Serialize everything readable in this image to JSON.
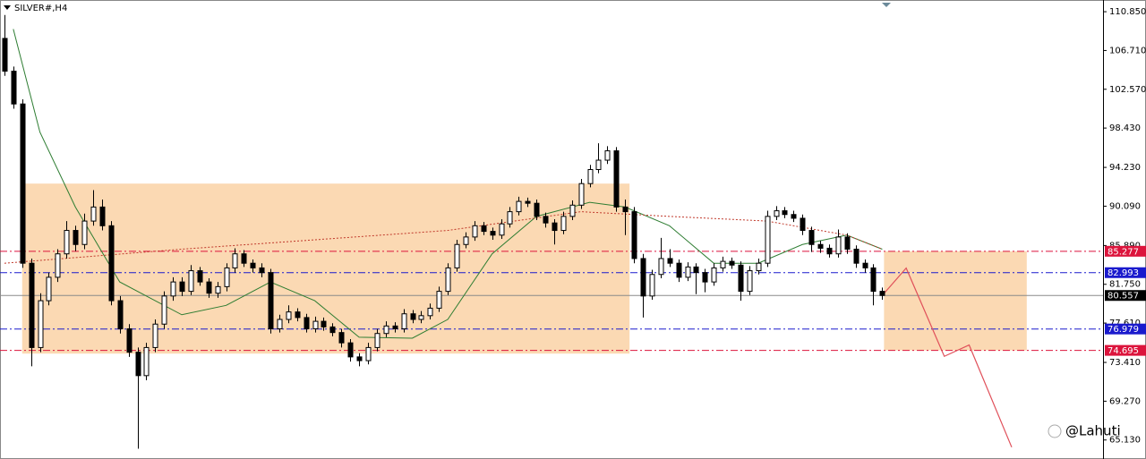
{
  "chart_data": {
    "type": "candlestick",
    "title": "SILVER#,H4",
    "watermark": "@Lahuti",
    "xlim": [
      -0.5,
      123.9
    ],
    "ylim": [
      63.1,
      112.1
    ],
    "yticks": [
      {
        "value": 110.85,
        "label": "110.850"
      },
      {
        "value": 106.71,
        "label": "106.710"
      },
      {
        "value": 102.57,
        "label": "102.570"
      },
      {
        "value": 98.43,
        "label": "98.430"
      },
      {
        "value": 94.23,
        "label": "94.230"
      },
      {
        "value": 90.09,
        "label": "90.090"
      },
      {
        "value": 85.89,
        "label": "85.890"
      },
      {
        "value": 81.75,
        "label": "81.750"
      },
      {
        "value": 77.61,
        "label": "77.610"
      },
      {
        "value": 73.41,
        "label": "73.410"
      },
      {
        "value": 69.27,
        "label": "69.270"
      },
      {
        "value": 65.13,
        "label": "65.130"
      }
    ],
    "up_color": "#ffffff",
    "down_color": "#000000",
    "candles": [
      [
        108,
        110.5,
        104,
        104.5
      ],
      [
        104.5,
        105,
        100.5,
        101
      ],
      [
        101,
        101.5,
        83.5,
        84
      ],
      [
        84,
        84.5,
        73,
        75
      ],
      [
        75,
        80.8,
        74.5,
        80
      ],
      [
        80,
        83,
        79.5,
        82.5
      ],
      [
        82.5,
        85.5,
        82,
        85
      ],
      [
        85,
        88.5,
        84.5,
        87.5
      ],
      [
        87.5,
        88,
        85.3,
        86
      ],
      [
        86,
        89.3,
        85.5,
        88.5
      ],
      [
        88.5,
        91.8,
        88,
        90
      ],
      [
        90,
        90.8,
        87.5,
        88
      ],
      [
        88,
        88.5,
        79.5,
        80
      ],
      [
        80,
        80.5,
        76.5,
        77
      ],
      [
        77,
        77.5,
        74,
        74.5
      ],
      [
        74.5,
        75,
        64.2,
        72
      ],
      [
        72,
        75.5,
        71.5,
        75
      ],
      [
        75,
        78,
        74.5,
        77.5
      ],
      [
        77.5,
        81,
        77,
        80.5
      ],
      [
        80.5,
        82.5,
        80,
        82
      ],
      [
        82,
        82.5,
        80.5,
        81
      ],
      [
        81,
        83.8,
        80.6,
        83.2
      ],
      [
        83.2,
        83.6,
        81.6,
        82
      ],
      [
        82,
        82.4,
        80.3,
        80.8
      ],
      [
        80.8,
        82,
        80.3,
        81.5
      ],
      [
        81.5,
        84,
        81,
        83.5
      ],
      [
        83.5,
        85.6,
        83,
        85
      ],
      [
        85,
        85.4,
        83.6,
        84
      ],
      [
        84,
        84.4,
        83,
        83.5
      ],
      [
        83.5,
        84,
        82.5,
        83
      ],
      [
        83,
        83.4,
        76.5,
        77
      ],
      [
        77,
        78.5,
        76.6,
        78
      ],
      [
        78,
        79.5,
        77.6,
        78.8
      ],
      [
        78.8,
        79.2,
        77.8,
        78.2
      ],
      [
        78.2,
        78.6,
        76.6,
        77
      ],
      [
        77,
        78.3,
        76.6,
        77.8
      ],
      [
        77.8,
        78.2,
        76.8,
        77.2
      ],
      [
        77.2,
        77.6,
        76.2,
        76.6
      ],
      [
        76.6,
        77,
        75,
        75.5
      ],
      [
        75.5,
        75.9,
        73.5,
        74
      ],
      [
        74,
        74.4,
        73,
        73.6
      ],
      [
        73.6,
        75.5,
        73.2,
        75
      ],
      [
        75,
        77,
        74.6,
        76.5
      ],
      [
        76.5,
        77.8,
        76.1,
        77.3
      ],
      [
        77.3,
        77.7,
        76.6,
        77
      ],
      [
        77,
        79.1,
        76.6,
        78.6
      ],
      [
        78.6,
        79,
        77.6,
        78
      ],
      [
        78,
        78.9,
        77.6,
        78.4
      ],
      [
        78.4,
        79.7,
        78,
        79.2
      ],
      [
        79.2,
        81.5,
        78.8,
        81
      ],
      [
        81,
        84,
        80.6,
        83.5
      ],
      [
        83.5,
        86.5,
        83.1,
        86
      ],
      [
        86,
        87.3,
        85.6,
        86.8
      ],
      [
        86.8,
        88.5,
        86.4,
        88
      ],
      [
        88,
        88.4,
        87,
        87.4
      ],
      [
        87.4,
        87.8,
        86.5,
        87
      ],
      [
        87,
        88.7,
        86.6,
        88.2
      ],
      [
        88.2,
        90,
        87.8,
        89.5
      ],
      [
        89.5,
        91.1,
        89.1,
        90.6
      ],
      [
        90.6,
        91,
        90,
        90.4
      ],
      [
        90.4,
        90.8,
        88.6,
        89
      ],
      [
        89,
        89.4,
        87.8,
        88.3
      ],
      [
        88.3,
        88.7,
        86,
        87.5
      ],
      [
        87.5,
        89.5,
        87.1,
        89
      ],
      [
        89,
        90.7,
        88.6,
        90.2
      ],
      [
        90.2,
        93,
        89.8,
        92.5
      ],
      [
        92.5,
        94.5,
        92.1,
        94
      ],
      [
        94,
        96.8,
        93.6,
        95
      ],
      [
        95,
        96.5,
        94.6,
        96
      ],
      [
        96,
        96.4,
        89.5,
        90
      ],
      [
        90,
        90.8,
        87,
        89.5
      ],
      [
        89.5,
        90,
        84,
        84.5
      ],
      [
        84.5,
        85,
        78.2,
        80.5
      ],
      [
        80.5,
        83.3,
        80.1,
        82.8
      ],
      [
        82.8,
        86.7,
        82.4,
        84.5
      ],
      [
        84.5,
        85.5,
        83.6,
        84
      ],
      [
        84,
        84.4,
        82,
        82.5
      ],
      [
        82.5,
        84.1,
        82.1,
        83.6
      ],
      [
        83.6,
        84,
        80.7,
        83
      ],
      [
        83,
        83.4,
        80.9,
        82
      ],
      [
        82,
        84,
        81.6,
        83.5
      ],
      [
        83.5,
        84.7,
        83.1,
        84.2
      ],
      [
        84.2,
        84.6,
        83.4,
        83.8
      ],
      [
        83.8,
        84.2,
        80,
        81
      ],
      [
        81,
        83.7,
        80.6,
        83.2
      ],
      [
        83.2,
        84.5,
        82.8,
        84
      ],
      [
        84,
        89.6,
        83.6,
        89
      ],
      [
        89,
        90.1,
        88.6,
        89.6
      ],
      [
        89.6,
        90,
        88.8,
        89.2
      ],
      [
        89.2,
        89.6,
        88.4,
        88.8
      ],
      [
        88.8,
        89.2,
        87,
        87.5
      ],
      [
        87.5,
        87.9,
        85.2,
        86
      ],
      [
        86,
        86.4,
        85.1,
        85.6
      ],
      [
        85.6,
        86,
        84.6,
        85
      ],
      [
        85,
        87.6,
        84.6,
        86.8
      ],
      [
        86.8,
        87.2,
        85,
        85.5
      ],
      [
        85.5,
        85.9,
        83.5,
        84
      ],
      [
        84,
        84.4,
        83,
        83.5
      ],
      [
        83.5,
        83.9,
        79.5,
        81
      ],
      [
        81,
        81.4,
        80.1,
        80.557
      ]
    ],
    "moving_averages": [
      {
        "color": "#2e7d32",
        "dash": false,
        "x": [
          1,
          4,
          8,
          13,
          20,
          25,
          30,
          35,
          40,
          46,
          50,
          55,
          60,
          66,
          70,
          75,
          80,
          85,
          90,
          95,
          99
        ],
        "values": [
          109,
          98,
          90,
          82,
          78.5,
          79.5,
          82,
          80,
          76.1,
          76,
          78,
          85,
          89,
          90.5,
          90,
          88,
          84,
          84,
          86,
          87,
          85.5
        ]
      },
      {
        "color": "#c0392b",
        "dash": true,
        "x": [
          0,
          20,
          50,
          65,
          75,
          86,
          95,
          99
        ],
        "values": [
          84,
          85.5,
          87.5,
          89.5,
          89,
          88.5,
          87,
          85.5
        ]
      }
    ],
    "zones": [
      {
        "color": "#fbd9b3",
        "x": [
          2,
          70.5
        ],
        "top": 92.5,
        "bottom": 74.35
      },
      {
        "color": "#fbd9b3",
        "x": [
          99.2,
          115.3
        ],
        "top": 85.277,
        "bottom": 74.695
      }
    ],
    "projection": {
      "color": "#e0505a",
      "x": [
        99,
        101.7,
        106,
        108.8,
        113.6
      ],
      "values": [
        80.557,
        83.48,
        74.06,
        75.27,
        64.36
      ]
    },
    "levels": [
      {
        "value": 85.277,
        "color": "#dc143c",
        "dash": true
      },
      {
        "value": 82.993,
        "color": "#1a1acd",
        "dash": true
      },
      {
        "value": 80.557,
        "color": "#000000",
        "dash": false
      },
      {
        "value": 76.979,
        "color": "#1a1acd",
        "dash": true
      },
      {
        "value": 74.695,
        "color": "#dc143c",
        "dash": true
      }
    ]
  }
}
